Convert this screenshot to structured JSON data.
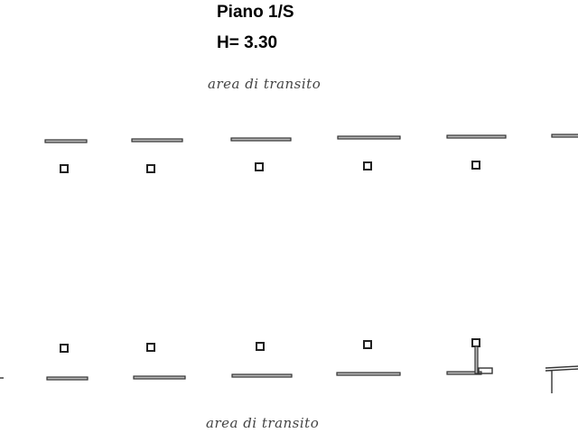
{
  "header": {
    "title": "Piano 1/S",
    "height": "H= 3.30"
  },
  "labels": [
    "area di transito",
    "area di transito"
  ]
}
